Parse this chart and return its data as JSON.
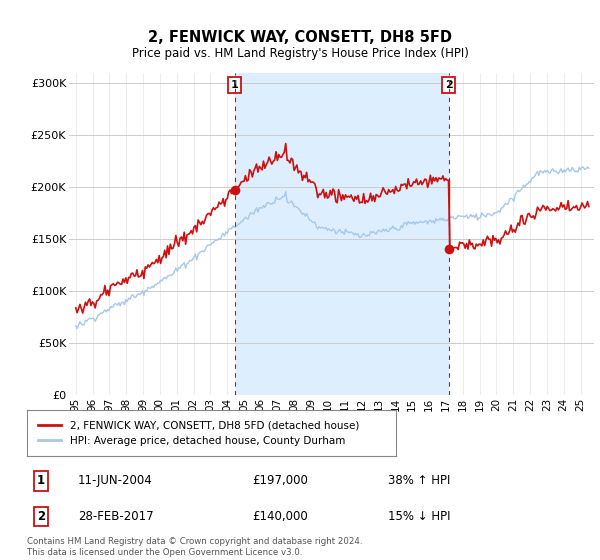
{
  "title": "2, FENWICK WAY, CONSETT, DH8 5FD",
  "subtitle": "Price paid vs. HM Land Registry's House Price Index (HPI)",
  "legend_line1": "2, FENWICK WAY, CONSETT, DH8 5FD (detached house)",
  "legend_line2": "HPI: Average price, detached house, County Durham",
  "annotation1_date": "11-JUN-2004",
  "annotation1_price": "£197,000",
  "annotation1_hpi": "38% ↑ HPI",
  "annotation1_year": 2004.44,
  "annotation1_value": 197000,
  "annotation2_date": "28-FEB-2017",
  "annotation2_price": "£140,000",
  "annotation2_hpi": "15% ↓ HPI",
  "annotation2_year": 2017.16,
  "annotation2_value": 140000,
  "footer": "Contains HM Land Registry data © Crown copyright and database right 2024.\nThis data is licensed under the Open Government Licence v3.0.",
  "hpi_color": "#a8c8e8",
  "price_color": "#cc1111",
  "shade_color": "#ddeeff",
  "ylim": [
    0,
    310000
  ],
  "yticks": [
    0,
    50000,
    100000,
    150000,
    200000,
    250000,
    300000
  ],
  "ytick_labels": [
    "£0",
    "£50K",
    "£100K",
    "£150K",
    "£200K",
    "£250K",
    "£300K"
  ],
  "xlim_start": 1994.6,
  "xlim_end": 2025.8
}
